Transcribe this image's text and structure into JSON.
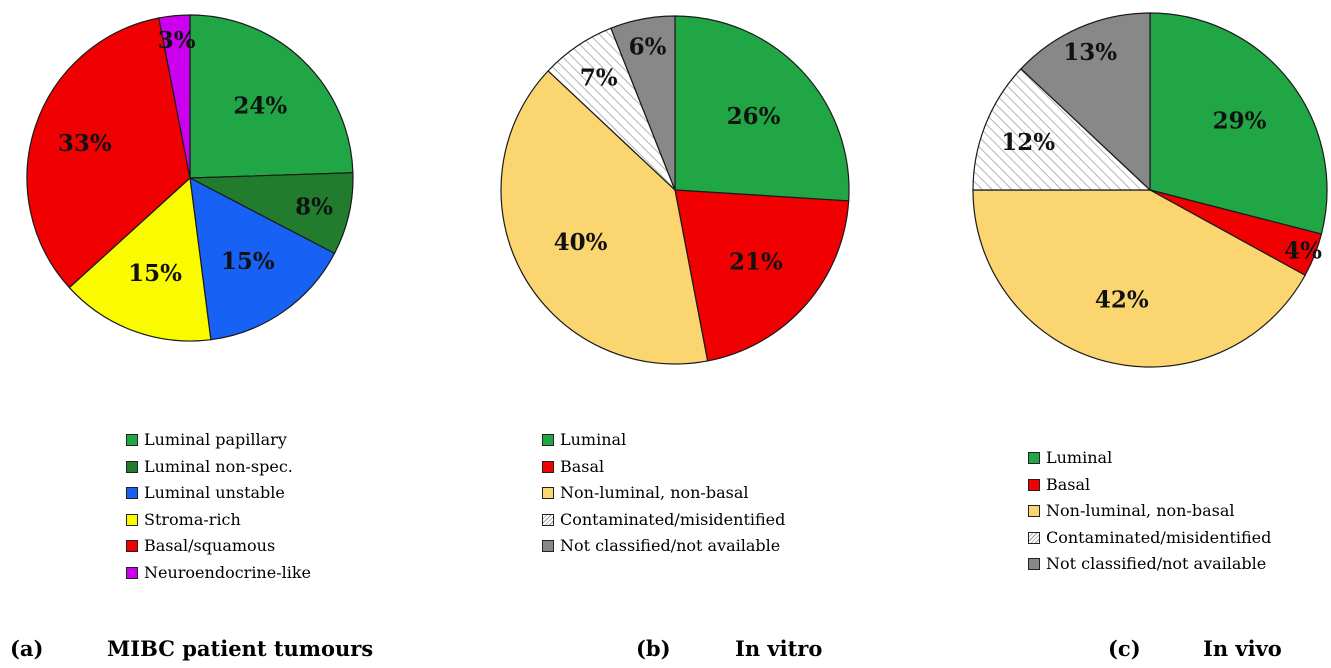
{
  "chart_data": [
    {
      "type": "pie",
      "panel": "(a)",
      "caption": "MIBC patient tumours",
      "categories": [
        "Luminal papillary",
        "Luminal non-spec.",
        "Luminal unstable",
        "Stroma-rich",
        "Basal/squamous",
        "Neuroendocrine-like"
      ],
      "values": [
        24,
        8,
        15,
        15,
        33,
        3
      ],
      "labels": [
        "24%",
        "8%",
        "15%",
        "15%",
        "33%",
        "3%"
      ],
      "colors": [
        "#21a645",
        "#217c2e",
        "#1761f5",
        "#fbfb00",
        "#f00000",
        "#cc00ee"
      ],
      "legend_position": "bottom"
    },
    {
      "type": "pie",
      "panel": "(b)",
      "caption": "In vitro",
      "categories": [
        "Luminal",
        "Basal",
        "Non-luminal, non-basal",
        "Contaminated/misidentified",
        "Not classified/not available"
      ],
      "values": [
        26,
        21,
        40,
        7,
        6
      ],
      "labels": [
        "26%",
        "21%",
        "40%",
        "7%",
        "6%"
      ],
      "colors": [
        "#21a645",
        "#f00000",
        "#fbd570",
        "hatch",
        "#888888"
      ],
      "legend_position": "bottom"
    },
    {
      "type": "pie",
      "panel": "(c)",
      "caption": "In vivo",
      "categories": [
        "Luminal",
        "Basal",
        "Non-luminal, non-basal",
        "Contaminated/misidentified",
        "Not classified/not available"
      ],
      "values": [
        29,
        4,
        42,
        12,
        13
      ],
      "labels": [
        "29%",
        "4%",
        "42%",
        "12%",
        "13%"
      ],
      "colors": [
        "#21a645",
        "#f00000",
        "#fbd570",
        "hatch",
        "#888888"
      ],
      "legend_position": "bottom"
    }
  ]
}
